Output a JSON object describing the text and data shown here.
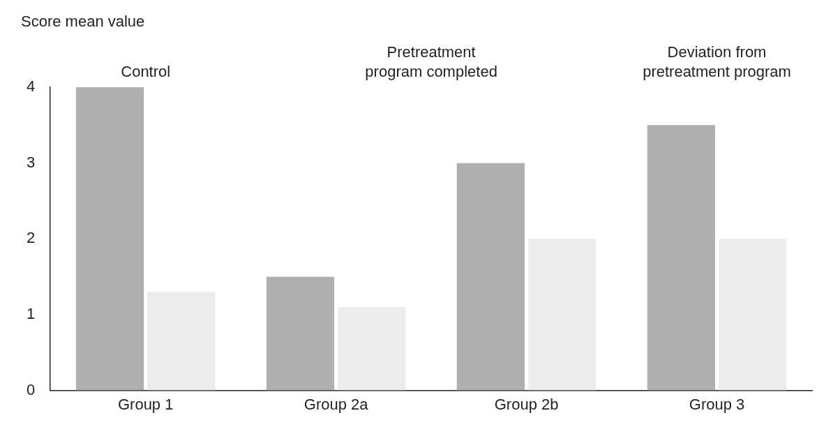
{
  "chart_data": {
    "type": "bar",
    "ylabel": "Score mean value",
    "categories": [
      "Group 1",
      "Group 2a",
      "Group 2b",
      "Group 3"
    ],
    "series": [
      {
        "color": "#b0b0b0",
        "values": [
          4.0,
          1.5,
          3.0,
          3.5
        ]
      },
      {
        "color": "#ececec",
        "values": [
          1.3,
          1.1,
          2.0,
          2.0
        ]
      }
    ],
    "ylim": [
      0,
      4
    ],
    "yticks": [
      0,
      1,
      2,
      3,
      4
    ],
    "grid": false,
    "legend": false,
    "annotations": [
      "Control",
      "Pretreatment\nprogram completed",
      "Deviation from\npretreatment program"
    ]
  }
}
